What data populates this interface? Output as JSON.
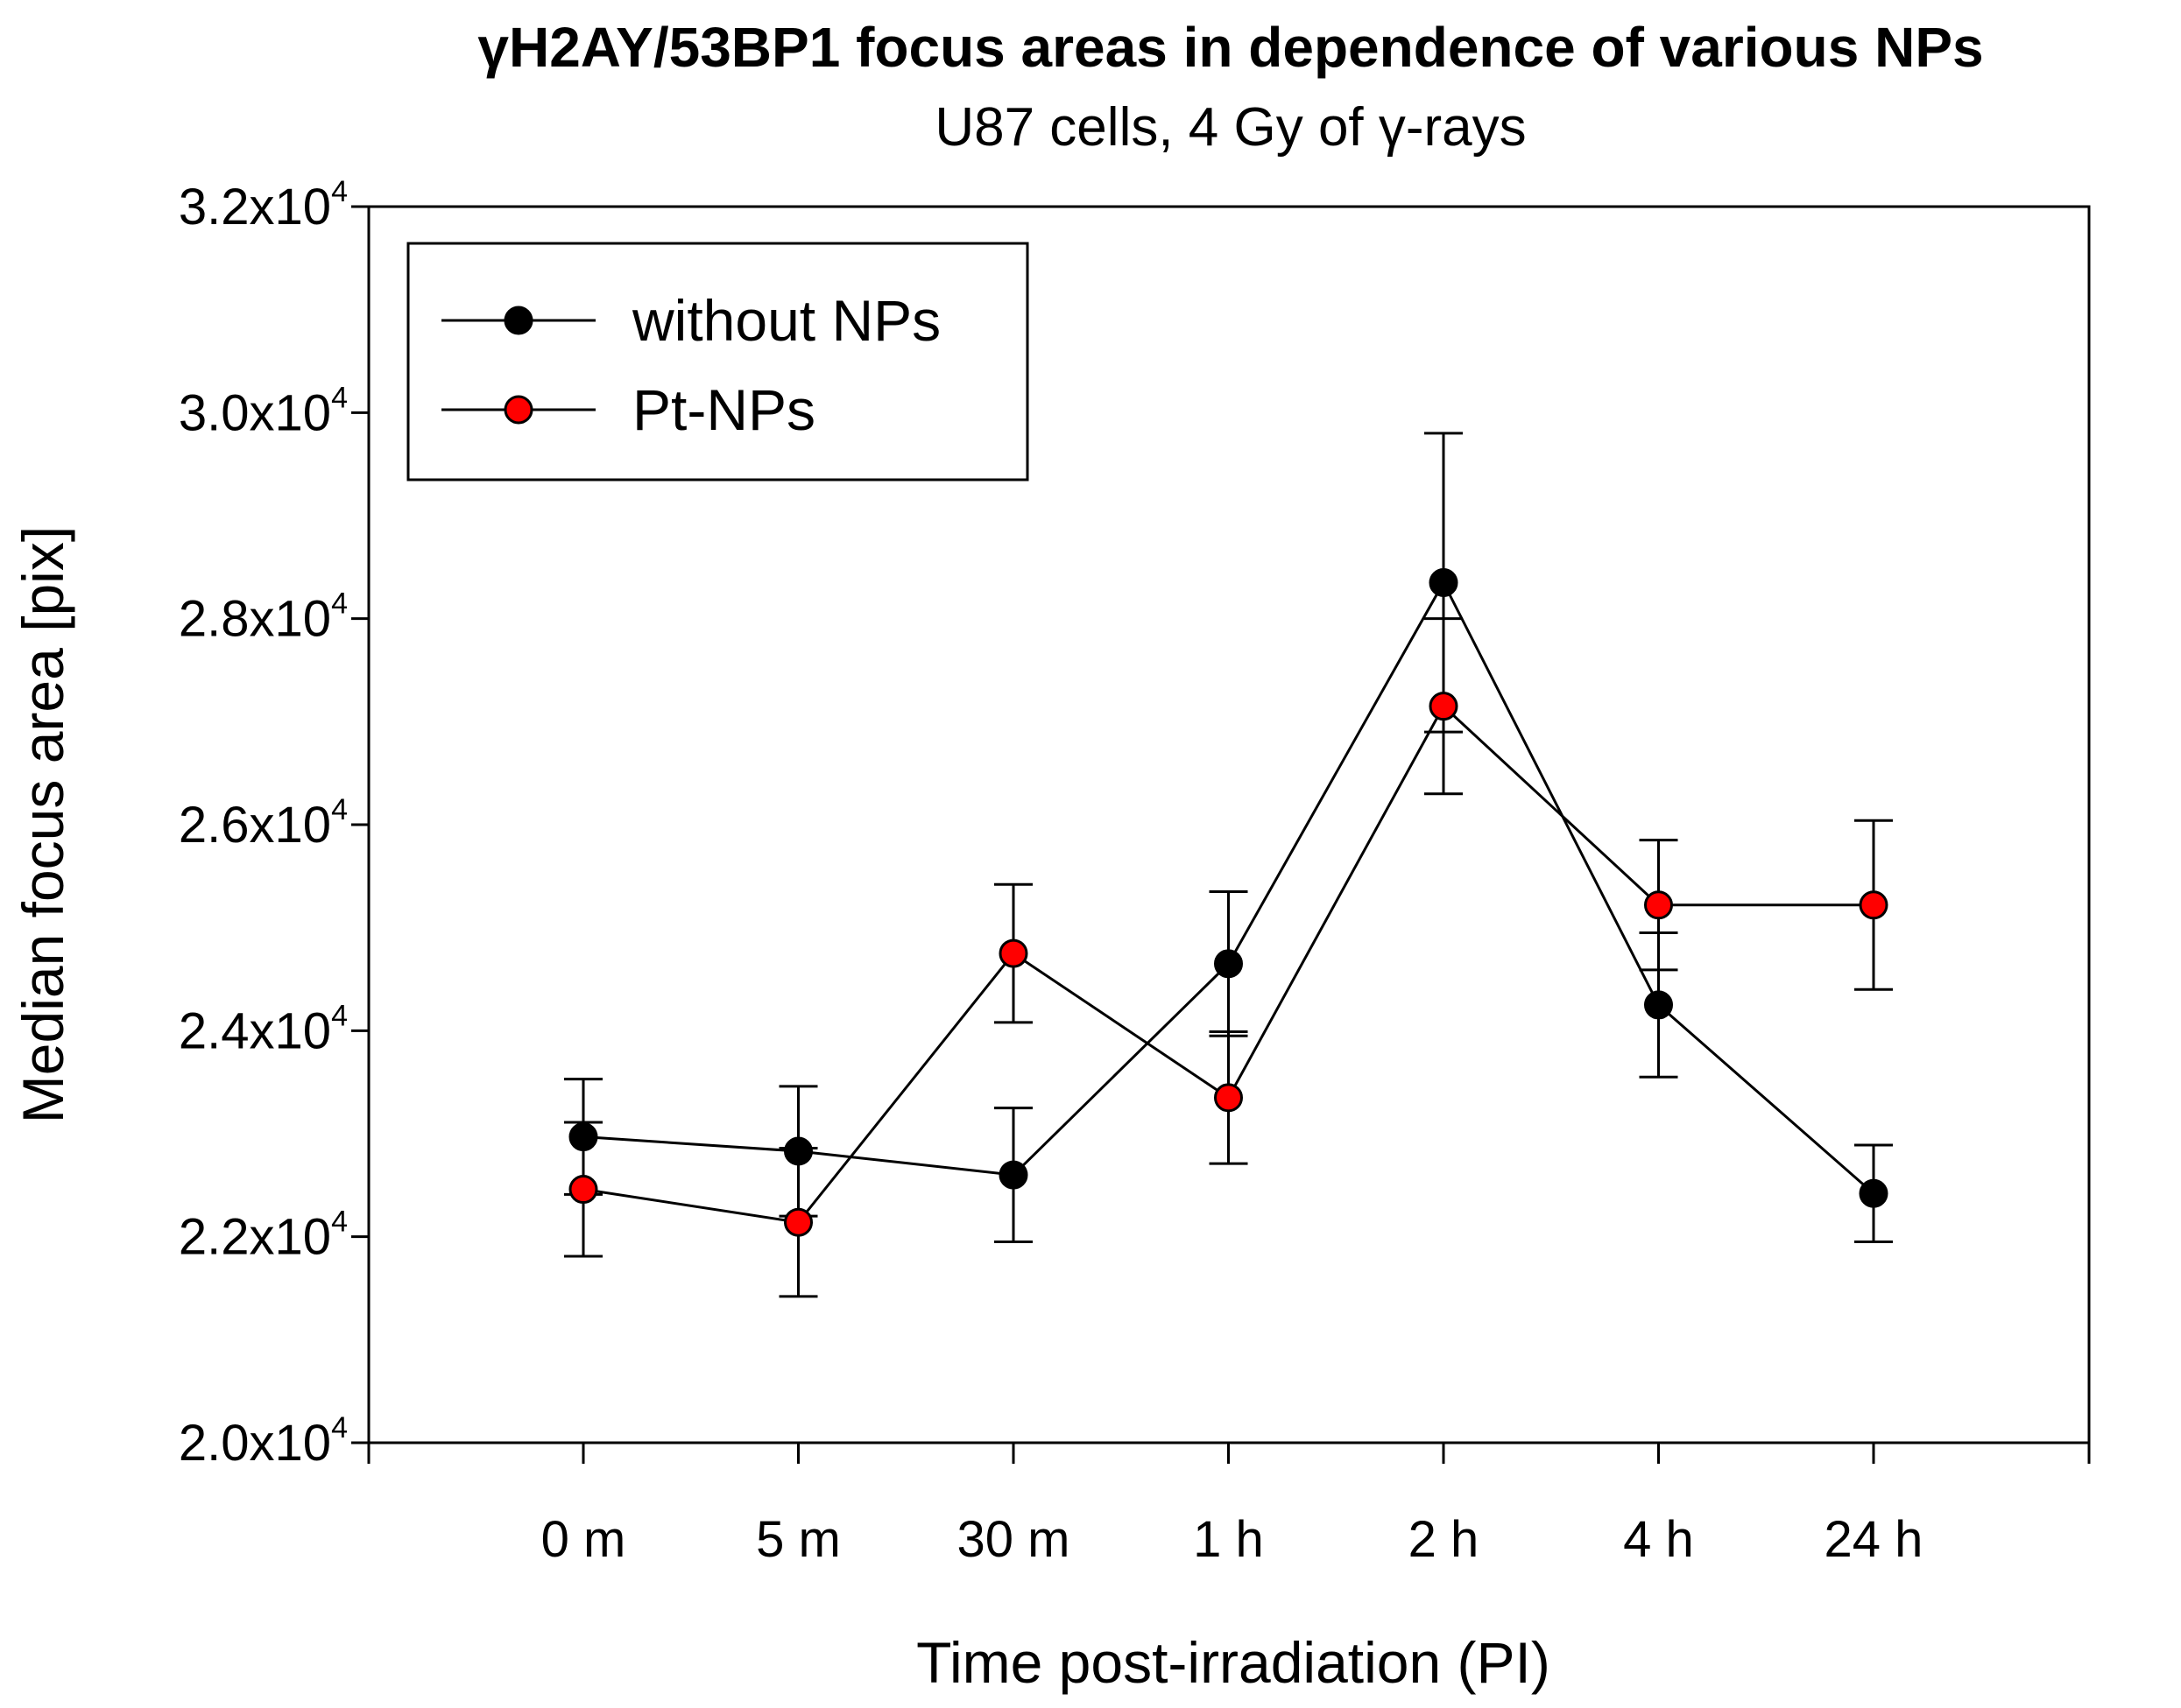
{
  "chart_data": {
    "type": "line",
    "title": "γH2AY/53BP1 focus areas in dependence of various NPs",
    "subtitle": "U87 cells, 4 Gy of γ-rays",
    "xlabel": "Time post-irradiation (PI)",
    "ylabel": "Median focus area [pix]",
    "categories": [
      "0 m",
      "5 m",
      "30 m",
      "1 h",
      "2 h",
      "4 h",
      "24 h"
    ],
    "ylim": [
      20000,
      32000
    ],
    "yticks": [
      {
        "value": 20000,
        "mantissa": "2.0x10",
        "exponent": "4"
      },
      {
        "value": 22000,
        "mantissa": "2.2x10",
        "exponent": "4"
      },
      {
        "value": 24000,
        "mantissa": "2.4x10",
        "exponent": "4"
      },
      {
        "value": 26000,
        "mantissa": "2.6x10",
        "exponent": "4"
      },
      {
        "value": 28000,
        "mantissa": "2.8x10",
        "exponent": "4"
      },
      {
        "value": 30000,
        "mantissa": "3.0x10",
        "exponent": "4"
      },
      {
        "value": 32000,
        "mantissa": "3.2x10",
        "exponent": "4"
      }
    ],
    "legend_position": "top-left",
    "series": [
      {
        "name": "without NPs",
        "color": "#000000",
        "values": [
          22970,
          22830,
          22600,
          24650,
          28350,
          24250,
          22420
        ],
        "errors": [
          560,
          630,
          650,
          700,
          1450,
          700,
          470
        ]
      },
      {
        "name": "Pt-NPs",
        "color": "#ff0000",
        "values": [
          22460,
          22140,
          24750,
          23350,
          27150,
          25220,
          25220
        ],
        "errors": [
          650,
          720,
          670,
          640,
          850,
          630,
          820
        ]
      }
    ]
  }
}
